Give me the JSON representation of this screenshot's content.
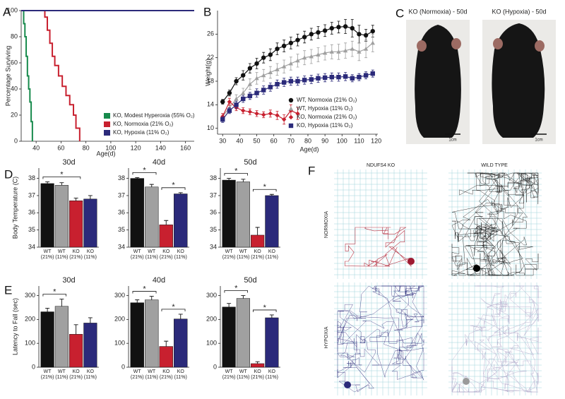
{
  "chart_data": [
    {
      "panel": "A",
      "type": "line",
      "step": true,
      "ylabel": "Percentage Surviving",
      "xlabel": "Age(d)",
      "xlim": [
        28,
        167
      ],
      "ylim": [
        0,
        100
      ],
      "xticks": [
        40,
        60,
        80,
        100,
        120,
        140,
        160
      ],
      "yticks": [
        0,
        20,
        40,
        60,
        80,
        100
      ],
      "legend": "lower right",
      "series": [
        {
          "name": "KO, Modest Hyperoxia (55% O₂)",
          "color": "#178a4c",
          "x": [
            28,
            30,
            31,
            32,
            33,
            34,
            35,
            36,
            37
          ],
          "values": [
            100,
            90,
            80,
            65,
            50,
            40,
            30,
            15,
            0
          ]
        },
        {
          "name": "KO, Normoxia (21% O₂)",
          "color": "#c8202f",
          "x": [
            28,
            47,
            49,
            51,
            53,
            55,
            58,
            61,
            64,
            67,
            70,
            72,
            75
          ],
          "values": [
            100,
            95,
            85,
            75,
            65,
            58,
            50,
            42,
            35,
            28,
            20,
            10,
            0
          ]
        },
        {
          "name": "KO, Hypoxia (11% O₂)",
          "color": "#2b2a7a",
          "x": [
            28,
            167
          ],
          "values": [
            100,
            100
          ]
        }
      ]
    },
    {
      "panel": "B",
      "type": "line",
      "ylabel": "Weight(g)",
      "xlabel": "Age(d)",
      "x": [
        30,
        34,
        38,
        42,
        46,
        50,
        54,
        58,
        62,
        66,
        70,
        74,
        78,
        82,
        86,
        90,
        94,
        98,
        102,
        106,
        110,
        114,
        118
      ],
      "xlim": [
        27,
        121
      ],
      "ylim": [
        9,
        30
      ],
      "xticks": [
        30,
        40,
        50,
        60,
        70,
        80,
        90,
        100,
        110,
        120
      ],
      "yticks": [
        10,
        14,
        18,
        22,
        26
      ],
      "legend": "lower right",
      "series": [
        {
          "name": "WT, Normoxia (21% O₂)",
          "color": "#111111",
          "marker": "circle",
          "values": [
            14.5,
            16,
            18,
            19,
            20.2,
            21,
            22,
            22.5,
            23.5,
            24,
            24.5,
            25,
            25.5,
            26,
            26.3,
            26.6,
            27,
            27.2,
            27.3,
            27,
            26,
            25.8,
            26.5
          ],
          "errors": [
            0.4,
            0.5,
            0.6,
            0.8,
            0.8,
            0.9,
            0.9,
            1,
            1,
            1,
            1,
            1,
            1,
            1,
            1,
            1,
            1,
            1,
            1.2,
            1.5,
            1.5,
            1,
            1
          ]
        },
        {
          "name": "WT, Hypoxia (11% O₂)",
          "color": "#a0a0a0",
          "marker": "triangle",
          "values": [
            12,
            13.5,
            15,
            16,
            17.5,
            18.5,
            19,
            19.5,
            20,
            20.5,
            21,
            21.5,
            22,
            22.2,
            22.5,
            22.8,
            23,
            23,
            23.2,
            23.5,
            23,
            23.5,
            24.5
          ],
          "errors": [
            0.5,
            0.6,
            0.7,
            0.8,
            0.9,
            1,
            1,
            1,
            1,
            1.1,
            1.1,
            1.1,
            1.2,
            1.2,
            1.2,
            1.2,
            1.2,
            1.3,
            1.3,
            1.3,
            1.5,
            1.5,
            1.5
          ]
        },
        {
          "name": "KO, Normoxia (21% O₂)",
          "color": "#c8202f",
          "marker": "diamond",
          "values": [
            12,
            14.5,
            13.5,
            13,
            12.8,
            12.5,
            12.3,
            12.5,
            12.2,
            11.5,
            13,
            12.5,
            null,
            null,
            null,
            null,
            null,
            null,
            null,
            null,
            null,
            null,
            null
          ],
          "errors": [
            0.5,
            0.6,
            0.5,
            0.5,
            0.5,
            0.5,
            0.5,
            0.6,
            0.7,
            0.8,
            1,
            1,
            null,
            null,
            null,
            null,
            null,
            null,
            null,
            null,
            null,
            null,
            null
          ]
        },
        {
          "name": "KO, Hypoxia (11% O₂)",
          "color": "#2b2a7a",
          "marker": "square",
          "values": [
            11.5,
            13,
            14,
            15,
            15.5,
            16,
            16.5,
            17,
            17.5,
            17.8,
            18,
            18,
            18.2,
            18.3,
            18.5,
            18.6,
            18.7,
            18.7,
            18.8,
            18.5,
            18.7,
            19,
            19.3
          ],
          "errors": [
            0.5,
            0.5,
            0.6,
            0.6,
            0.6,
            0.7,
            0.7,
            0.7,
            0.7,
            0.7,
            0.7,
            0.7,
            0.7,
            0.7,
            0.7,
            0.7,
            0.7,
            0.7,
            0.7,
            0.6,
            0.6,
            0.6,
            0.6
          ]
        }
      ]
    },
    {
      "panel": "D",
      "type": "bar",
      "title": "30d",
      "ylabel": "Body Temperature (C)",
      "ylim": [
        34,
        38.6
      ],
      "yticks": [
        34,
        35,
        36,
        37,
        38
      ],
      "categories": [
        "WT (21%)",
        "WT (11%)",
        "KO (21%)",
        "KO (11%)"
      ],
      "colors": [
        "#111111",
        "#a0a0a0",
        "#c8202f",
        "#2b2a7a"
      ],
      "values": [
        37.7,
        37.6,
        36.7,
        36.8
      ],
      "errors": [
        0.1,
        0.15,
        0.15,
        0.2
      ],
      "significance": [
        {
          "label": "*",
          "between": [
            0,
            2
          ]
        }
      ]
    },
    {
      "type": "bar",
      "title": "40d",
      "ylim": [
        34,
        38.6
      ],
      "yticks": [
        34,
        35,
        36,
        37,
        38
      ],
      "categories": [
        "WT (21%)",
        "WT (11%)",
        "KO (21%)",
        "KO (11%)"
      ],
      "colors": [
        "#111111",
        "#a0a0a0",
        "#c8202f",
        "#2b2a7a"
      ],
      "values": [
        38.0,
        37.5,
        35.3,
        37.1
      ],
      "errors": [
        0.05,
        0.15,
        0.25,
        0.07
      ],
      "significance": [
        {
          "label": "*",
          "between": [
            0,
            1
          ]
        },
        {
          "label": "*",
          "between": [
            2,
            3
          ]
        }
      ]
    },
    {
      "type": "bar",
      "title": "50d",
      "ylim": [
        34,
        38.6
      ],
      "yticks": [
        34,
        35,
        36,
        37,
        38
      ],
      "categories": [
        "WT (21%)",
        "WT (11%)",
        "KO (21%)",
        "KO (11%)"
      ],
      "colors": [
        "#111111",
        "#a0a0a0",
        "#c8202f",
        "#2b2a7a"
      ],
      "values": [
        37.9,
        37.8,
        34.7,
        37.0
      ],
      "errors": [
        0.1,
        0.15,
        0.45,
        0.07
      ],
      "significance": [
        {
          "label": "*",
          "between": [
            0,
            1
          ]
        },
        {
          "label": "*",
          "between": [
            2,
            3
          ]
        }
      ]
    },
    {
      "panel": "E",
      "type": "bar",
      "title": "30d",
      "ylabel": "Latency to Fall (sec)",
      "ylim": [
        0,
        340
      ],
      "yticks": [
        0,
        100,
        200,
        300
      ],
      "categories": [
        "WT (21%)",
        "WT (11%)",
        "KO (21%)",
        "KO (11%)"
      ],
      "colors": [
        "#111111",
        "#a0a0a0",
        "#c8202f",
        "#2b2a7a"
      ],
      "values": [
        232,
        255,
        138,
        185
      ],
      "errors": [
        15,
        30,
        40,
        22
      ],
      "significance": [
        {
          "label": "*",
          "between": [
            0,
            1
          ]
        }
      ]
    },
    {
      "type": "bar",
      "title": "40d",
      "ylim": [
        0,
        340
      ],
      "yticks": [
        0,
        100,
        200,
        300
      ],
      "categories": [
        "WT (21%)",
        "WT (11%)",
        "KO (21%)",
        "KO (11%)"
      ],
      "colors": [
        "#111111",
        "#a0a0a0",
        "#c8202f",
        "#2b2a7a"
      ],
      "values": [
        270,
        282,
        87,
        202
      ],
      "errors": [
        12,
        15,
        22,
        20
      ],
      "significance": [
        {
          "label": "*",
          "between": [
            0,
            1
          ]
        },
        {
          "label": "*",
          "between": [
            2,
            3
          ]
        }
      ]
    },
    {
      "type": "bar",
      "title": "50d",
      "ylim": [
        0,
        340
      ],
      "yticks": [
        0,
        100,
        200,
        300
      ],
      "categories": [
        "WT (21%)",
        "WT (11%)",
        "KO (21%)",
        "KO (11%)"
      ],
      "colors": [
        "#111111",
        "#a0a0a0",
        "#c8202f",
        "#2b2a7a"
      ],
      "values": [
        252,
        288,
        15,
        207
      ],
      "errors": [
        15,
        12,
        8,
        12
      ],
      "significance": [
        {
          "label": "*",
          "between": [
            0,
            1
          ]
        },
        {
          "label": "*",
          "between": [
            2,
            3
          ]
        }
      ]
    }
  ],
  "photos": {
    "panel": "C",
    "titles": [
      "KO (Normoxia) - 50d",
      "KO (Hypoxia) - 50d"
    ],
    "scale": [
      "1cm",
      "1cm"
    ]
  },
  "tracks": {
    "panel": "F",
    "columns": [
      "NDUFS4 KO",
      "WILD TYPE"
    ],
    "rows": [
      "NORMOXIA",
      "HYPOXIA"
    ]
  }
}
